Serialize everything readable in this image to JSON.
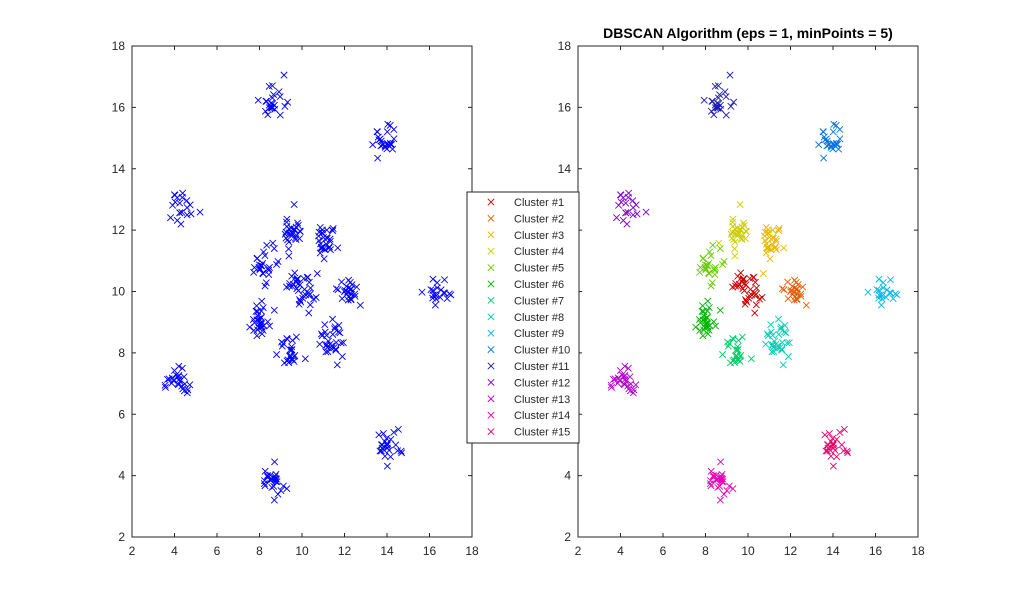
{
  "chart_data": [
    {
      "type": "scatter",
      "title": "",
      "xlabel": "",
      "ylabel": "",
      "xlim": [
        2,
        18
      ],
      "ylim": [
        2,
        18
      ],
      "xticks": [
        "2",
        "4",
        "6",
        "8",
        "10",
        "12",
        "14",
        "16",
        "18"
      ],
      "yticks": [
        "2",
        "4",
        "6",
        "8",
        "10",
        "12",
        "14",
        "16",
        "18"
      ],
      "marker": "x",
      "grid": false,
      "series": [
        {
          "color": "#0000ff",
          "clusters": [
            {
              "center": [
                10.0,
                10.1
              ],
              "spread": 0.32,
              "count": 35
            },
            {
              "center": [
                12.1,
                10.0
              ],
              "spread": 0.28,
              "count": 25
            },
            {
              "center": [
                11.2,
                11.7
              ],
              "spread": 0.32,
              "count": 30
            },
            {
              "center": [
                9.5,
                11.9
              ],
              "spread": 0.32,
              "count": 30
            },
            {
              "center": [
                8.1,
                10.8
              ],
              "spread": 0.28,
              "count": 25
            },
            {
              "center": [
                8.0,
                9.1
              ],
              "spread": 0.32,
              "count": 30
            },
            {
              "center": [
                9.5,
                8.0
              ],
              "spread": 0.28,
              "count": 25
            },
            {
              "center": [
                11.3,
                8.4
              ],
              "spread": 0.32,
              "count": 30
            },
            {
              "center": [
                16.4,
                10.0
              ],
              "spread": 0.3,
              "count": 20
            },
            {
              "center": [
                14.0,
                15.0
              ],
              "spread": 0.28,
              "count": 25
            },
            {
              "center": [
                8.6,
                16.2
              ],
              "spread": 0.28,
              "count": 25
            },
            {
              "center": [
                4.3,
                12.8
              ],
              "spread": 0.3,
              "count": 20
            },
            {
              "center": [
                4.2,
                7.1
              ],
              "spread": 0.25,
              "count": 25
            },
            {
              "center": [
                8.6,
                3.8
              ],
              "spread": 0.28,
              "count": 25
            },
            {
              "center": [
                14.0,
                5.0
              ],
              "spread": 0.3,
              "count": 25
            }
          ]
        }
      ]
    },
    {
      "type": "scatter",
      "title": "DBSCAN Algorithm (eps = 1, minPoints = 5)",
      "xlabel": "",
      "ylabel": "",
      "xlim": [
        2,
        18
      ],
      "ylim": [
        2,
        18
      ],
      "xticks": [
        "2",
        "4",
        "6",
        "8",
        "10",
        "12",
        "14",
        "16",
        "18"
      ],
      "yticks": [
        "2",
        "4",
        "6",
        "8",
        "10",
        "12",
        "14",
        "16",
        "18"
      ],
      "marker": "x",
      "grid": false,
      "legend_placement": "center-left",
      "series": [
        {
          "name": "Cluster #1",
          "color": "#cc0000",
          "center": [
            10.0,
            10.1
          ],
          "spread": 0.32,
          "count": 35
        },
        {
          "name": "Cluster #2",
          "color": "#e65c00",
          "center": [
            12.1,
            10.0
          ],
          "spread": 0.28,
          "count": 25
        },
        {
          "name": "Cluster #3",
          "color": "#e6b800",
          "center": [
            11.2,
            11.7
          ],
          "spread": 0.32,
          "count": 30
        },
        {
          "name": "Cluster #4",
          "color": "#cccc00",
          "center": [
            9.5,
            11.9
          ],
          "spread": 0.32,
          "count": 30
        },
        {
          "name": "Cluster #5",
          "color": "#66cc00",
          "center": [
            8.1,
            10.8
          ],
          "spread": 0.28,
          "count": 25
        },
        {
          "name": "Cluster #6",
          "color": "#00b300",
          "center": [
            8.0,
            9.1
          ],
          "spread": 0.32,
          "count": 30
        },
        {
          "name": "Cluster #7",
          "color": "#00cc66",
          "center": [
            9.5,
            8.0
          ],
          "spread": 0.28,
          "count": 25
        },
        {
          "name": "Cluster #8",
          "color": "#00ccb3",
          "center": [
            11.3,
            8.4
          ],
          "spread": 0.32,
          "count": 30
        },
        {
          "name": "Cluster #9",
          "color": "#00b8e6",
          "center": [
            16.4,
            10.0
          ],
          "spread": 0.3,
          "count": 20
        },
        {
          "name": "Cluster #10",
          "color": "#0073e6",
          "center": [
            14.0,
            15.0
          ],
          "spread": 0.28,
          "count": 25
        },
        {
          "name": "Cluster #11",
          "color": "#1a1ab3",
          "center": [
            8.6,
            16.2
          ],
          "spread": 0.28,
          "count": 25
        },
        {
          "name": "Cluster #12",
          "color": "#8000cc",
          "center": [
            4.3,
            12.8
          ],
          "spread": 0.3,
          "count": 20
        },
        {
          "name": "Cluster #13",
          "color": "#b300cc",
          "center": [
            4.2,
            7.1
          ],
          "spread": 0.25,
          "count": 25
        },
        {
          "name": "Cluster #14",
          "color": "#e600b8",
          "center": [
            8.6,
            3.8
          ],
          "spread": 0.28,
          "count": 25
        },
        {
          "name": "Cluster #15",
          "color": "#e6006b",
          "center": [
            14.0,
            5.0
          ],
          "spread": 0.3,
          "count": 25
        }
      ]
    }
  ]
}
